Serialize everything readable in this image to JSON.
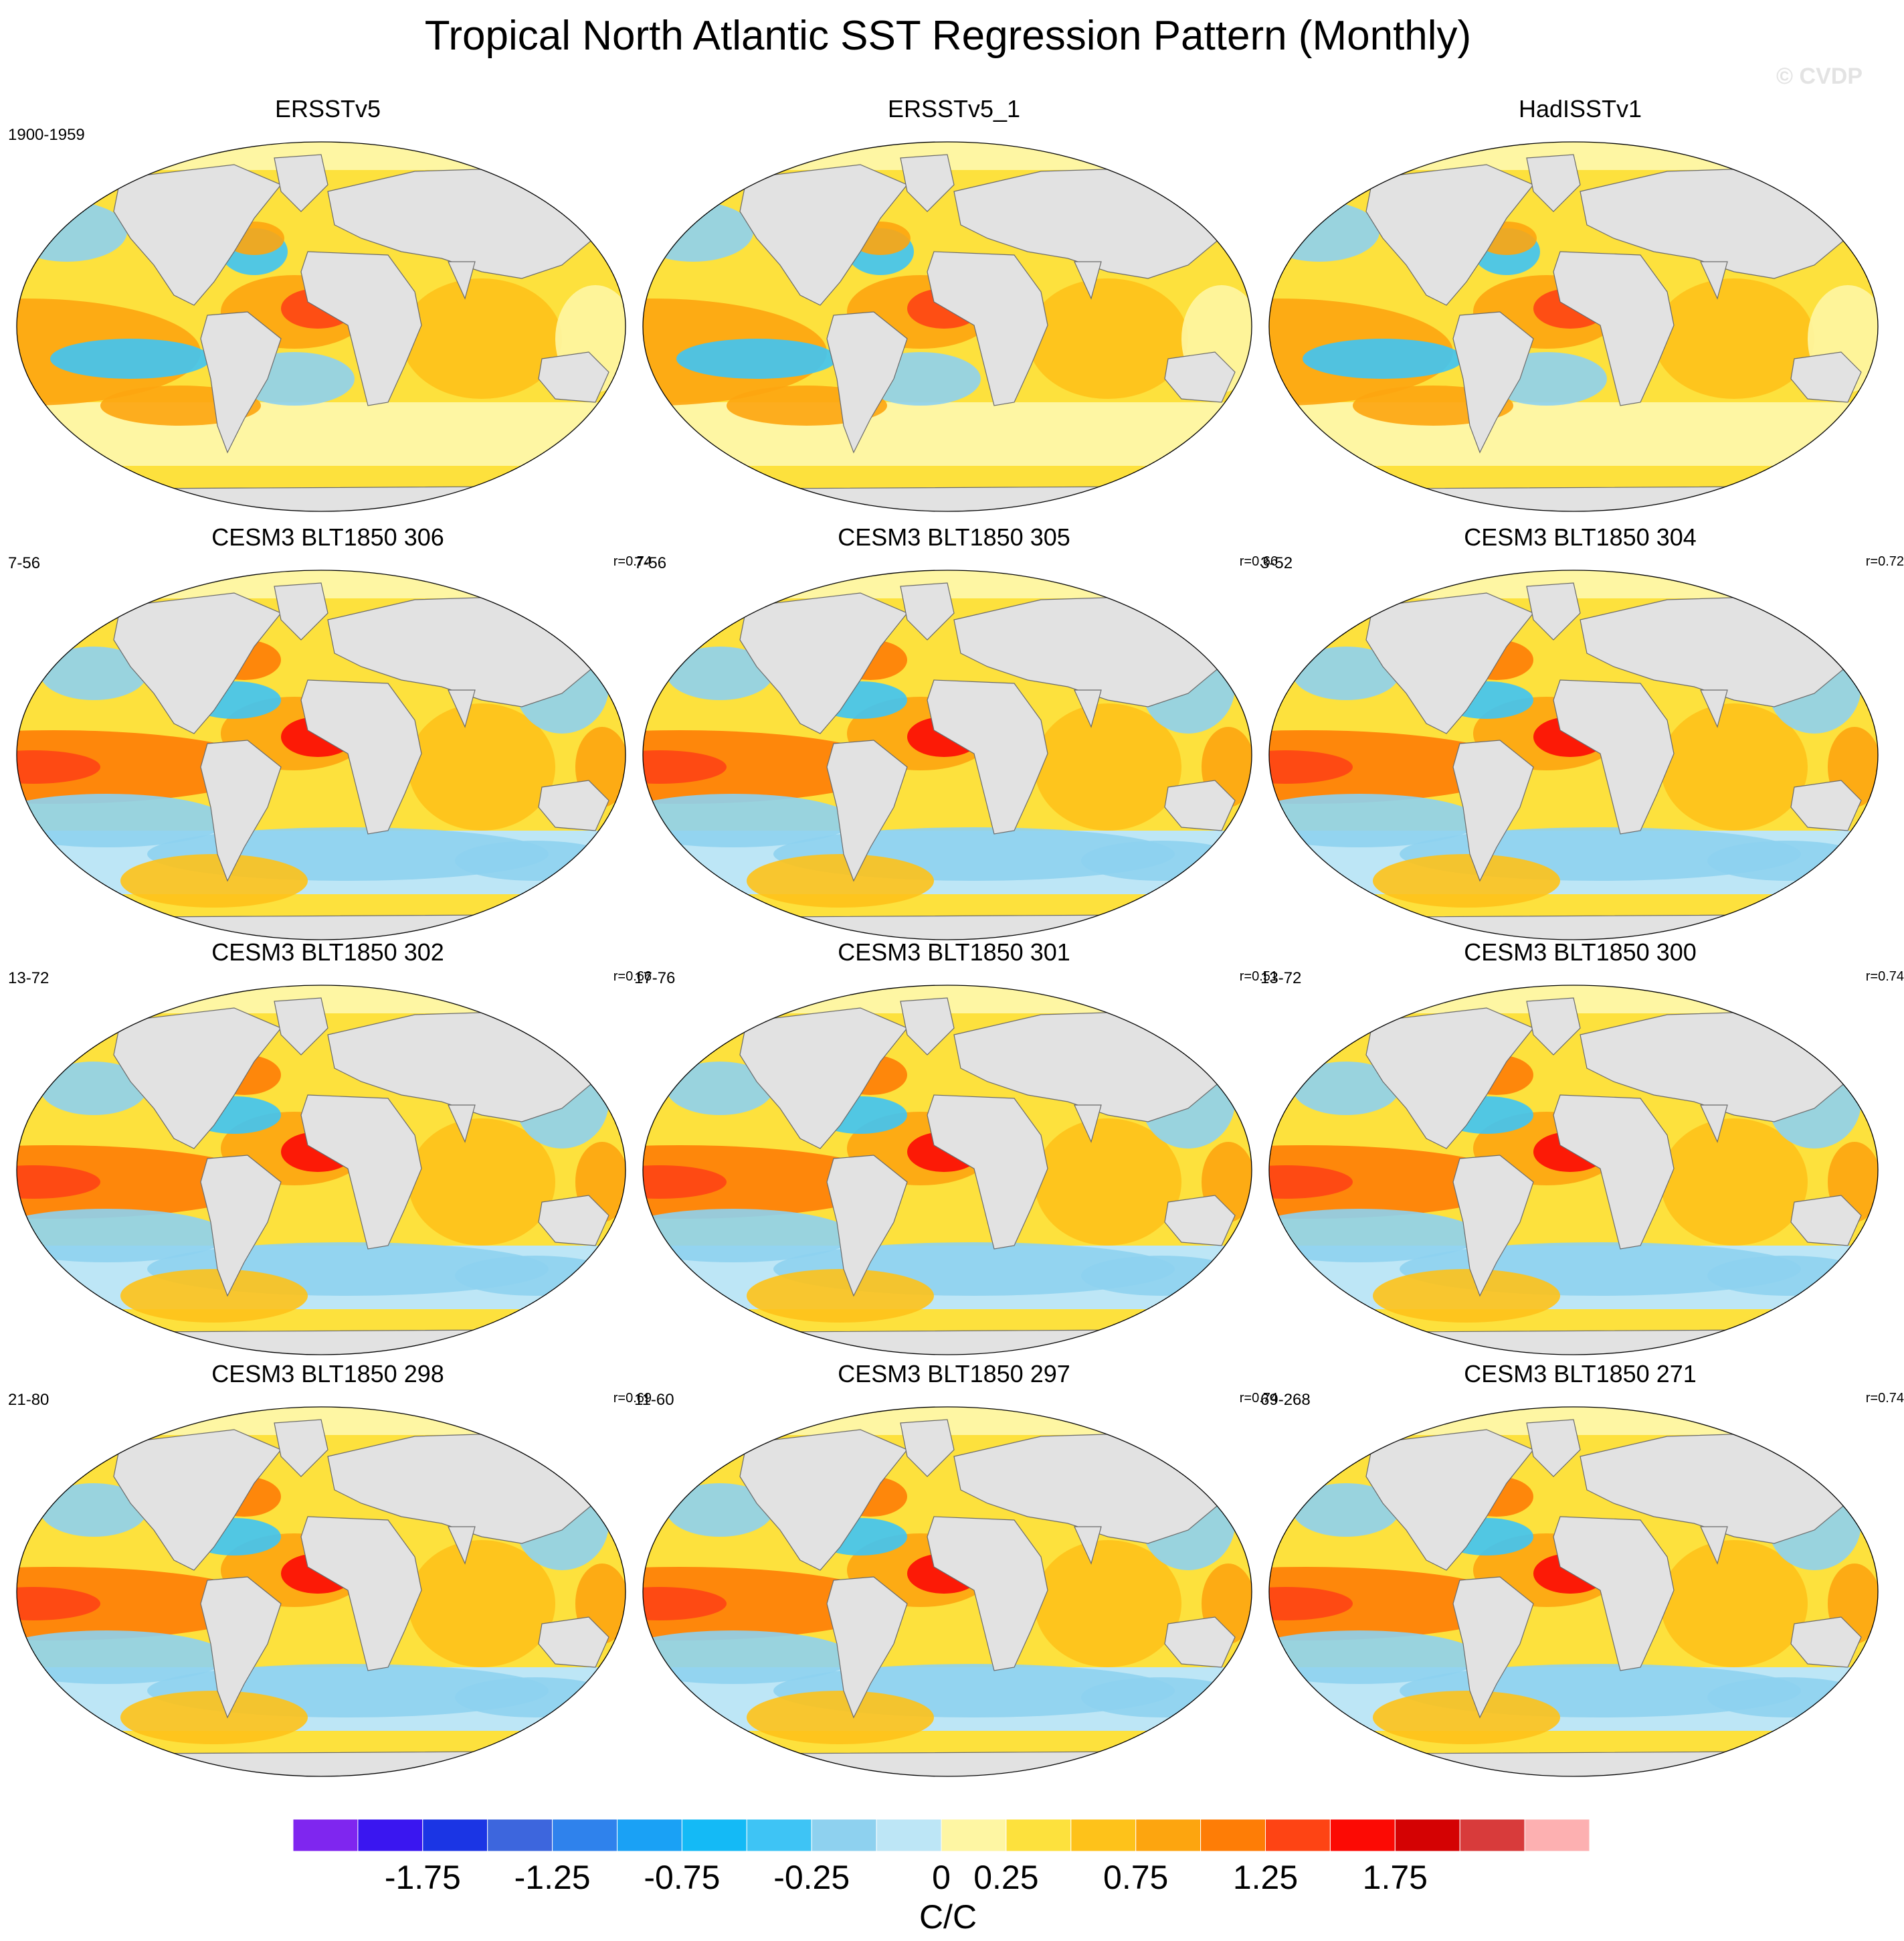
{
  "title": "Tropical North Atlantic SST Regression Pattern (Monthly)",
  "credit": "© CVDP",
  "colors": {
    "land": "#e2e2e2",
    "coast": "#6a6a6a",
    "scale": [
      "#7f26ef",
      "#3a16f0",
      "#1b35e4",
      "#3d66dd",
      "#2f82ec",
      "#1aa1f5",
      "#14baf6",
      "#3ec4f5",
      "#8ed1ef",
      "#bde6f6",
      "#fef6a3",
      "#fde13d",
      "#fec21a",
      "#fda50f",
      "#fe7d06",
      "#fe4414",
      "#fc0a04",
      "#d40203",
      "#d83b3b",
      "#fdb0b1"
    ]
  },
  "panels": [
    {
      "title": "ERSSTv5",
      "period": "1900-1959",
      "corr": "",
      "pattern": "obs"
    },
    {
      "title": "ERSSTv5_1",
      "period": "",
      "corr": "",
      "pattern": "obs"
    },
    {
      "title": "HadISSTv1",
      "period": "",
      "corr": "",
      "pattern": "obs"
    },
    {
      "title": "CESM3 BLT1850 306",
      "period": "7-56",
      "corr": "r=0.74",
      "pattern": "model"
    },
    {
      "title": "CESM3 BLT1850 305",
      "period": "7-56",
      "corr": "r=0.66",
      "pattern": "model"
    },
    {
      "title": "CESM3 BLT1850 304",
      "period": "3-52",
      "corr": "r=0.72",
      "pattern": "model"
    },
    {
      "title": "CESM3 BLT1850 302",
      "period": "13-72",
      "corr": "r=0.66",
      "pattern": "model"
    },
    {
      "title": "CESM3 BLT1850 301",
      "period": "17-76",
      "corr": "r=0.51",
      "pattern": "model"
    },
    {
      "title": "CESM3 BLT1850 300",
      "period": "13-72",
      "corr": "r=0.74",
      "pattern": "model"
    },
    {
      "title": "CESM3 BLT1850 298",
      "period": "21-80",
      "corr": "r=0.69",
      "pattern": "model"
    },
    {
      "title": "CESM3 BLT1850 297",
      "period": "11-60",
      "corr": "r=0.74",
      "pattern": "model"
    },
    {
      "title": "CESM3 BLT1850 271",
      "period": "69-268",
      "corr": "r=0.74",
      "pattern": "model"
    }
  ],
  "colorbar": {
    "labels": [
      "-1.75",
      "-1.25",
      "-0.75",
      "-0.25",
      "0",
      "0.25",
      "0.75",
      "1.25",
      "1.75"
    ],
    "units": "C/C"
  }
}
